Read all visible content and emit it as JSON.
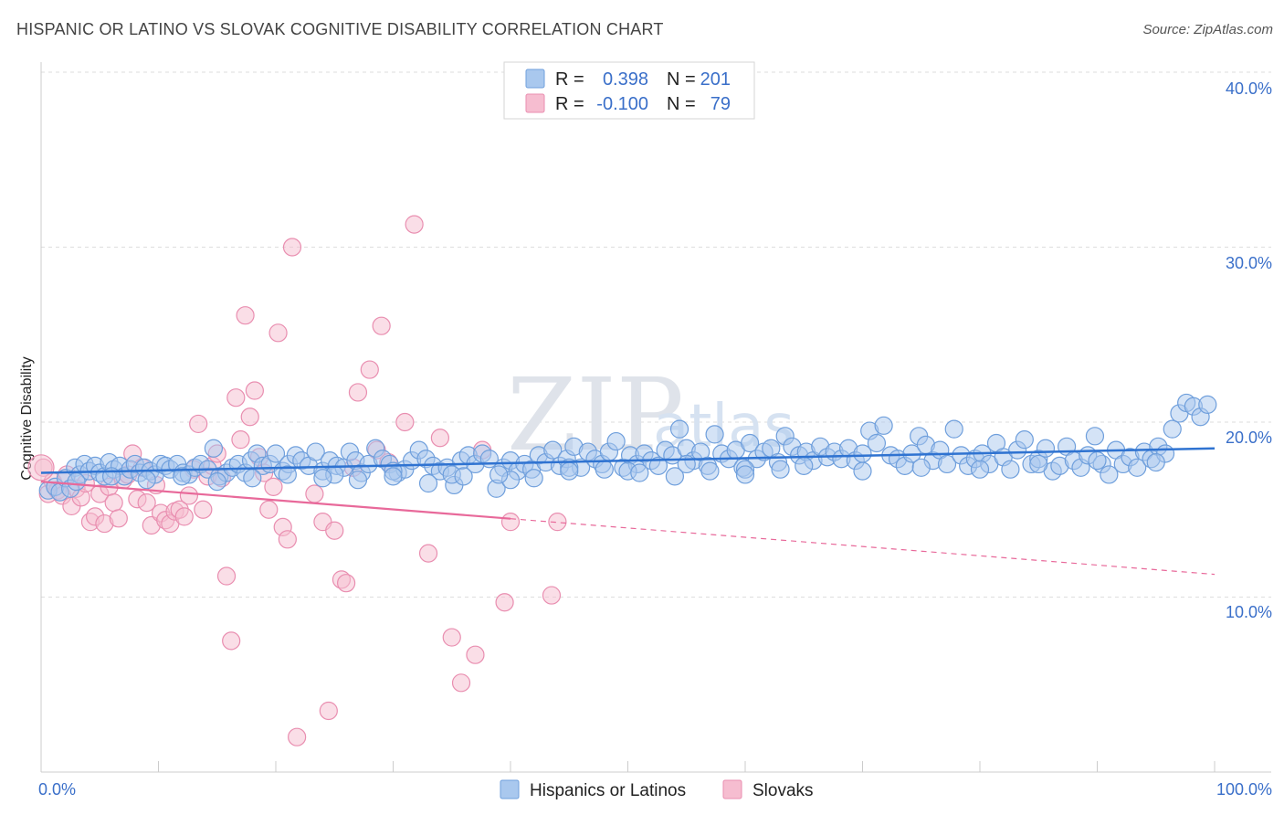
{
  "header": {
    "title": "HISPANIC OR LATINO VS SLOVAK COGNITIVE DISABILITY CORRELATION CHART",
    "source": "Source: ZipAtlas.com"
  },
  "colors": {
    "blue_fill": "#a9c8ee",
    "blue_stroke": "#6f9fdc",
    "blue_line": "#2f73d1",
    "pink_fill": "#f6bdd0",
    "pink_stroke": "#e98eb0",
    "pink_line": "#e8699a",
    "grid": "#dddddd",
    "tick_text": "#3a6fc9"
  },
  "watermark": {
    "zip": "ZIP",
    "atlas": "atlas"
  },
  "legend": {
    "r_label": "R =",
    "n_label": "N =",
    "rows": [
      {
        "r": "0.398",
        "n": "201"
      },
      {
        "r": "-0.100",
        "n": "79"
      }
    ]
  },
  "bottom_legend": [
    "Hispanics or Latinos",
    "Slovaks"
  ],
  "chart_data": {
    "type": "scatter",
    "title": "HISPANIC OR LATINO VS SLOVAK COGNITIVE DISABILITY CORRELATION CHART",
    "xlabel": "",
    "ylabel": "Cognitive Disability",
    "xlim": [
      0,
      100
    ],
    "ylim": [
      0,
      40
    ],
    "x_tick_labels": [
      "0.0%",
      "100.0%"
    ],
    "y_ticks": [
      10,
      20,
      30,
      40
    ],
    "y_tick_labels": [
      "10.0%",
      "20.0%",
      "30.0%",
      "40.0%"
    ],
    "grid": true,
    "legend_position": "top-center",
    "series": [
      {
        "name": "Hispanics or Latinos",
        "R": 0.398,
        "N": 201,
        "trend": {
          "x": [
            0,
            100
          ],
          "y": [
            17.1,
            18.5
          ]
        },
        "points": [
          [
            0.6,
            16.1
          ],
          [
            1.2,
            16.3
          ],
          [
            1.6,
            16.0
          ],
          [
            2.1,
            16.8
          ],
          [
            2.5,
            16.2
          ],
          [
            2.9,
            17.4
          ],
          [
            3.3,
            17.0
          ],
          [
            3.7,
            17.6
          ],
          [
            4.1,
            17.2
          ],
          [
            4.6,
            17.5
          ],
          [
            5.0,
            17.1
          ],
          [
            5.4,
            16.9
          ],
          [
            5.8,
            17.7
          ],
          [
            6.2,
            17.3
          ],
          [
            6.7,
            17.5
          ],
          [
            7.1,
            16.9
          ],
          [
            7.6,
            17.3
          ],
          [
            8.0,
            17.6
          ],
          [
            8.4,
            17.1
          ],
          [
            8.8,
            17.4
          ],
          [
            9.3,
            17.2
          ],
          [
            9.7,
            17.0
          ],
          [
            10.2,
            17.6
          ],
          [
            10.6,
            17.5
          ],
          [
            11.0,
            17.3
          ],
          [
            11.6,
            17.6
          ],
          [
            12.1,
            17.1
          ],
          [
            12.6,
            17.0
          ],
          [
            13.1,
            17.4
          ],
          [
            13.6,
            17.6
          ],
          [
            14.2,
            17.3
          ],
          [
            14.7,
            18.5
          ],
          [
            15.2,
            16.9
          ],
          [
            15.8,
            17.1
          ],
          [
            16.3,
            17.4
          ],
          [
            16.8,
            17.6
          ],
          [
            17.4,
            17.1
          ],
          [
            17.9,
            17.8
          ],
          [
            18.4,
            18.2
          ],
          [
            18.9,
            17.5
          ],
          [
            19.5,
            17.6
          ],
          [
            20.0,
            18.2
          ],
          [
            20.6,
            17.2
          ],
          [
            21.1,
            17.6
          ],
          [
            21.7,
            18.1
          ],
          [
            22.2,
            17.8
          ],
          [
            22.8,
            17.5
          ],
          [
            23.4,
            18.3
          ],
          [
            24.0,
            17.2
          ],
          [
            24.6,
            17.8
          ],
          [
            25.2,
            17.5
          ],
          [
            25.8,
            17.4
          ],
          [
            26.3,
            18.3
          ],
          [
            26.8,
            17.8
          ],
          [
            27.3,
            17.1
          ],
          [
            27.9,
            17.6
          ],
          [
            28.5,
            18.5
          ],
          [
            29.1,
            17.9
          ],
          [
            29.7,
            17.6
          ],
          [
            30.4,
            17.1
          ],
          [
            31.0,
            17.3
          ],
          [
            31.6,
            17.8
          ],
          [
            32.2,
            18.4
          ],
          [
            32.8,
            17.9
          ],
          [
            33.4,
            17.5
          ],
          [
            34.0,
            17.2
          ],
          [
            34.6,
            17.4
          ],
          [
            35.2,
            16.4
          ],
          [
            35.8,
            17.8
          ],
          [
            36.4,
            18.1
          ],
          [
            37.0,
            17.6
          ],
          [
            37.6,
            18.2
          ],
          [
            38.2,
            17.9
          ],
          [
            38.8,
            16.2
          ],
          [
            39.4,
            17.4
          ],
          [
            40.0,
            17.8
          ],
          [
            40.6,
            17.2
          ],
          [
            41.2,
            17.6
          ],
          [
            41.8,
            17.3
          ],
          [
            42.4,
            18.1
          ],
          [
            43.0,
            17.7
          ],
          [
            43.6,
            18.4
          ],
          [
            44.2,
            17.5
          ],
          [
            44.8,
            17.9
          ],
          [
            45.4,
            18.6
          ],
          [
            46.0,
            17.4
          ],
          [
            46.6,
            18.3
          ],
          [
            47.2,
            17.9
          ],
          [
            47.8,
            17.6
          ],
          [
            48.4,
            18.3
          ],
          [
            49.0,
            18.9
          ],
          [
            49.6,
            17.4
          ],
          [
            50.2,
            18.1
          ],
          [
            50.8,
            17.6
          ],
          [
            51.4,
            18.2
          ],
          [
            52.0,
            17.8
          ],
          [
            52.6,
            17.5
          ],
          [
            53.2,
            18.4
          ],
          [
            53.8,
            18.1
          ],
          [
            54.4,
            19.6
          ],
          [
            55.0,
            18.5
          ],
          [
            55.6,
            17.8
          ],
          [
            56.2,
            18.3
          ],
          [
            56.8,
            17.5
          ],
          [
            57.4,
            19.3
          ],
          [
            58.0,
            18.2
          ],
          [
            58.6,
            17.9
          ],
          [
            59.2,
            18.4
          ],
          [
            59.8,
            17.4
          ],
          [
            60.4,
            18.8
          ],
          [
            61.0,
            17.9
          ],
          [
            61.6,
            18.3
          ],
          [
            62.2,
            18.5
          ],
          [
            62.8,
            17.7
          ],
          [
            63.4,
            19.2
          ],
          [
            64.0,
            18.6
          ],
          [
            64.6,
            18.1
          ],
          [
            65.2,
            18.3
          ],
          [
            65.8,
            17.8
          ],
          [
            66.4,
            18.6
          ],
          [
            67.0,
            18.0
          ],
          [
            67.6,
            18.3
          ],
          [
            68.2,
            17.9
          ],
          [
            68.8,
            18.5
          ],
          [
            69.4,
            17.8
          ],
          [
            70.0,
            18.2
          ],
          [
            70.6,
            19.5
          ],
          [
            71.2,
            18.8
          ],
          [
            71.8,
            19.8
          ],
          [
            72.4,
            18.1
          ],
          [
            73.0,
            17.9
          ],
          [
            73.6,
            17.5
          ],
          [
            74.2,
            18.2
          ],
          [
            74.8,
            19.2
          ],
          [
            75.4,
            18.7
          ],
          [
            76.0,
            17.8
          ],
          [
            76.6,
            18.4
          ],
          [
            77.2,
            17.6
          ],
          [
            77.8,
            19.6
          ],
          [
            78.4,
            18.1
          ],
          [
            79.0,
            17.5
          ],
          [
            79.6,
            17.9
          ],
          [
            80.2,
            18.2
          ],
          [
            80.8,
            17.6
          ],
          [
            81.4,
            18.8
          ],
          [
            82.0,
            18.0
          ],
          [
            82.6,
            17.3
          ],
          [
            83.2,
            18.4
          ],
          [
            83.8,
            19.0
          ],
          [
            84.4,
            17.6
          ],
          [
            85.0,
            17.9
          ],
          [
            85.6,
            18.5
          ],
          [
            86.2,
            17.2
          ],
          [
            86.8,
            17.5
          ],
          [
            87.4,
            18.6
          ],
          [
            88.0,
            17.8
          ],
          [
            88.6,
            17.4
          ],
          [
            89.2,
            18.1
          ],
          [
            89.8,
            19.2
          ],
          [
            90.4,
            17.6
          ],
          [
            91.0,
            17.0
          ],
          [
            91.6,
            18.4
          ],
          [
            92.2,
            17.6
          ],
          [
            92.8,
            18.0
          ],
          [
            93.4,
            17.4
          ],
          [
            94.0,
            18.3
          ],
          [
            94.6,
            17.9
          ],
          [
            95.2,
            18.6
          ],
          [
            95.8,
            18.2
          ],
          [
            96.4,
            19.6
          ],
          [
            97.0,
            20.5
          ],
          [
            97.6,
            21.1
          ],
          [
            98.2,
            20.9
          ],
          [
            98.8,
            20.3
          ],
          [
            99.4,
            21.0
          ],
          [
            25.0,
            17.0
          ],
          [
            30.0,
            17.2
          ],
          [
            35.0,
            17.0
          ],
          [
            40.0,
            16.7
          ],
          [
            45.0,
            17.4
          ],
          [
            50.0,
            17.2
          ],
          [
            55.0,
            17.6
          ],
          [
            60.0,
            17.3
          ],
          [
            65.0,
            17.5
          ],
          [
            70.0,
            17.2
          ],
          [
            75.0,
            17.4
          ],
          [
            80.0,
            17.3
          ],
          [
            85.0,
            17.6
          ],
          [
            90.0,
            17.8
          ],
          [
            95.0,
            17.7
          ],
          [
            3.0,
            16.6
          ],
          [
            6.0,
            16.9
          ],
          [
            9.0,
            16.7
          ],
          [
            12.0,
            16.9
          ],
          [
            15.0,
            16.6
          ],
          [
            18.0,
            16.8
          ],
          [
            21.0,
            17.0
          ],
          [
            24.0,
            16.8
          ],
          [
            27.0,
            16.7
          ],
          [
            30.0,
            16.9
          ],
          [
            33.0,
            16.5
          ],
          [
            36.0,
            16.9
          ],
          [
            39.0,
            17.0
          ],
          [
            42.0,
            16.8
          ],
          [
            45.0,
            17.2
          ],
          [
            48.0,
            17.3
          ],
          [
            51.0,
            17.1
          ],
          [
            54.0,
            16.9
          ],
          [
            57.0,
            17.2
          ],
          [
            60.0,
            17.0
          ],
          [
            63.0,
            17.3
          ]
        ]
      },
      {
        "name": "Slovaks",
        "R": -0.1,
        "N": 79,
        "trend": {
          "x": [
            0,
            100
          ],
          "y": [
            16.6,
            11.3
          ],
          "solid_until_x": 40
        },
        "points": [
          [
            0.2,
            17.4
          ],
          [
            0.6,
            15.9
          ],
          [
            1.0,
            16.6
          ],
          [
            1.4,
            16.1
          ],
          [
            1.8,
            15.8
          ],
          [
            2.2,
            17.0
          ],
          [
            2.6,
            15.2
          ],
          [
            3.0,
            16.2
          ],
          [
            3.4,
            15.7
          ],
          [
            3.8,
            16.5
          ],
          [
            4.2,
            14.3
          ],
          [
            4.6,
            14.6
          ],
          [
            5.0,
            15.9
          ],
          [
            5.4,
            14.2
          ],
          [
            5.8,
            16.3
          ],
          [
            6.2,
            15.4
          ],
          [
            6.6,
            14.5
          ],
          [
            7.0,
            16.7
          ],
          [
            7.4,
            17.0
          ],
          [
            7.8,
            18.2
          ],
          [
            8.2,
            15.6
          ],
          [
            8.6,
            17.4
          ],
          [
            9.0,
            15.4
          ],
          [
            9.4,
            14.1
          ],
          [
            9.8,
            16.4
          ],
          [
            10.2,
            14.8
          ],
          [
            10.6,
            14.4
          ],
          [
            11.0,
            14.2
          ],
          [
            11.4,
            14.9
          ],
          [
            11.8,
            15.0
          ],
          [
            12.2,
            14.6
          ],
          [
            12.6,
            15.8
          ],
          [
            13.0,
            17.3
          ],
          [
            13.4,
            19.9
          ],
          [
            13.8,
            15.0
          ],
          [
            14.2,
            16.9
          ],
          [
            14.6,
            17.5
          ],
          [
            15.0,
            18.2
          ],
          [
            15.4,
            16.8
          ],
          [
            15.8,
            11.2
          ],
          [
            16.2,
            7.5
          ],
          [
            16.6,
            21.4
          ],
          [
            17.0,
            19.0
          ],
          [
            17.4,
            26.1
          ],
          [
            17.8,
            20.3
          ],
          [
            18.2,
            21.8
          ],
          [
            18.6,
            18.0
          ],
          [
            19.0,
            17.1
          ],
          [
            19.4,
            15.0
          ],
          [
            19.8,
            16.3
          ],
          [
            20.2,
            25.1
          ],
          [
            20.6,
            14.0
          ],
          [
            21.0,
            13.3
          ],
          [
            21.4,
            30.0
          ],
          [
            21.8,
            2.0
          ],
          [
            23.3,
            15.9
          ],
          [
            24.0,
            14.3
          ],
          [
            24.5,
            3.5
          ],
          [
            25.0,
            13.8
          ],
          [
            25.6,
            11.0
          ],
          [
            26.0,
            10.8
          ],
          [
            26.6,
            17.4
          ],
          [
            27.0,
            21.7
          ],
          [
            28.0,
            23.0
          ],
          [
            28.6,
            18.4
          ],
          [
            29.0,
            25.5
          ],
          [
            29.6,
            17.7
          ],
          [
            31.0,
            20.0
          ],
          [
            31.8,
            31.3
          ],
          [
            33.0,
            12.5
          ],
          [
            34.0,
            19.1
          ],
          [
            35.0,
            7.7
          ],
          [
            35.8,
            5.1
          ],
          [
            37.0,
            6.7
          ],
          [
            37.6,
            18.4
          ],
          [
            39.5,
            9.7
          ],
          [
            40.0,
            14.3
          ],
          [
            43.5,
            10.1
          ],
          [
            44.0,
            14.3
          ]
        ]
      }
    ]
  }
}
